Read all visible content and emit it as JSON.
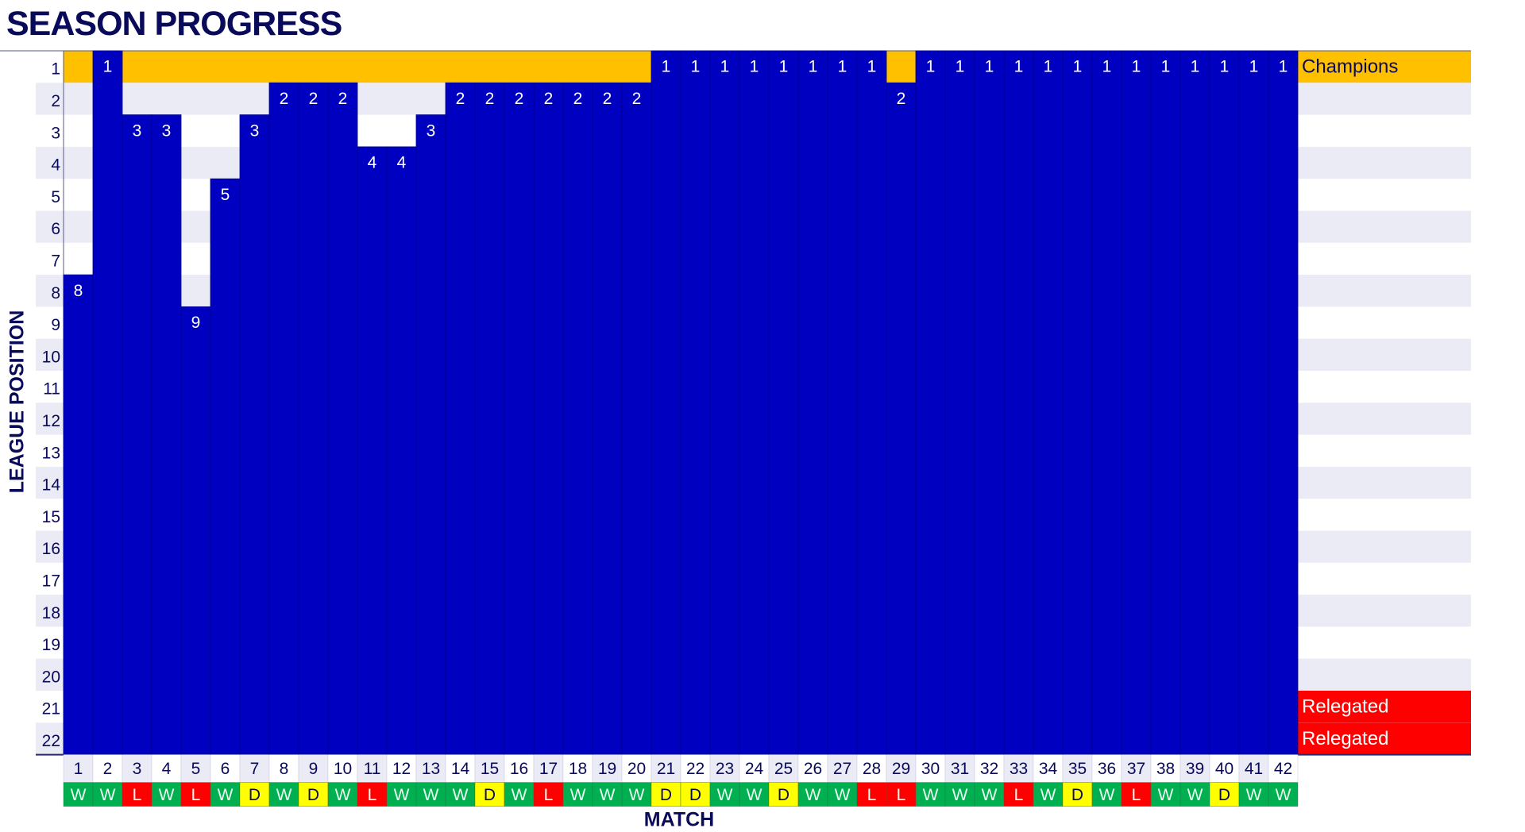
{
  "chart_data": {
    "type": "bar",
    "title": "SEASON PROGRESS",
    "xlabel": "MATCH",
    "ylabel": "LEAGUE POSITION",
    "ylim": [
      1,
      22
    ],
    "y_inverted": true,
    "y_ticks": [
      1,
      2,
      3,
      4,
      5,
      6,
      7,
      8,
      9,
      10,
      11,
      12,
      13,
      14,
      15,
      16,
      17,
      18,
      19,
      20,
      21,
      22
    ],
    "categories": [
      1,
      2,
      3,
      4,
      5,
      6,
      7,
      8,
      9,
      10,
      11,
      12,
      13,
      14,
      15,
      16,
      17,
      18,
      19,
      20,
      21,
      22,
      23,
      24,
      25,
      26,
      27,
      28,
      29,
      30,
      31,
      32,
      33,
      34,
      35,
      36,
      37,
      38,
      39,
      40,
      41,
      42
    ],
    "values": [
      8,
      1,
      3,
      3,
      9,
      5,
      3,
      2,
      2,
      2,
      4,
      4,
      3,
      2,
      2,
      2,
      2,
      2,
      2,
      2,
      1,
      1,
      1,
      1,
      1,
      1,
      1,
      1,
      2,
      1,
      1,
      1,
      1,
      1,
      1,
      1,
      1,
      1,
      1,
      1,
      1,
      1
    ],
    "results": [
      "W",
      "W",
      "L",
      "W",
      "L",
      "W",
      "D",
      "W",
      "D",
      "W",
      "L",
      "W",
      "W",
      "W",
      "D",
      "W",
      "L",
      "W",
      "W",
      "W",
      "D",
      "D",
      "W",
      "W",
      "D",
      "W",
      "W",
      "L",
      "L",
      "W",
      "W",
      "W",
      "L",
      "W",
      "D",
      "W",
      "L",
      "W",
      "W",
      "D",
      "W",
      "W"
    ],
    "zones": [
      {
        "label": "Champions",
        "positions": [
          1
        ],
        "color": "#FFC000"
      },
      {
        "label": "Relegated",
        "positions": [
          21
        ],
        "color": "#FF0000"
      },
      {
        "label": "Relegated",
        "positions": [
          22
        ],
        "color": "#FF0000"
      }
    ],
    "colors": {
      "bar": "#0000C0",
      "win": "#00B050",
      "draw": "#FFFF00",
      "loss": "#FF0000",
      "stripe": "#EBEBF5",
      "text": "#0A0A5A"
    }
  }
}
